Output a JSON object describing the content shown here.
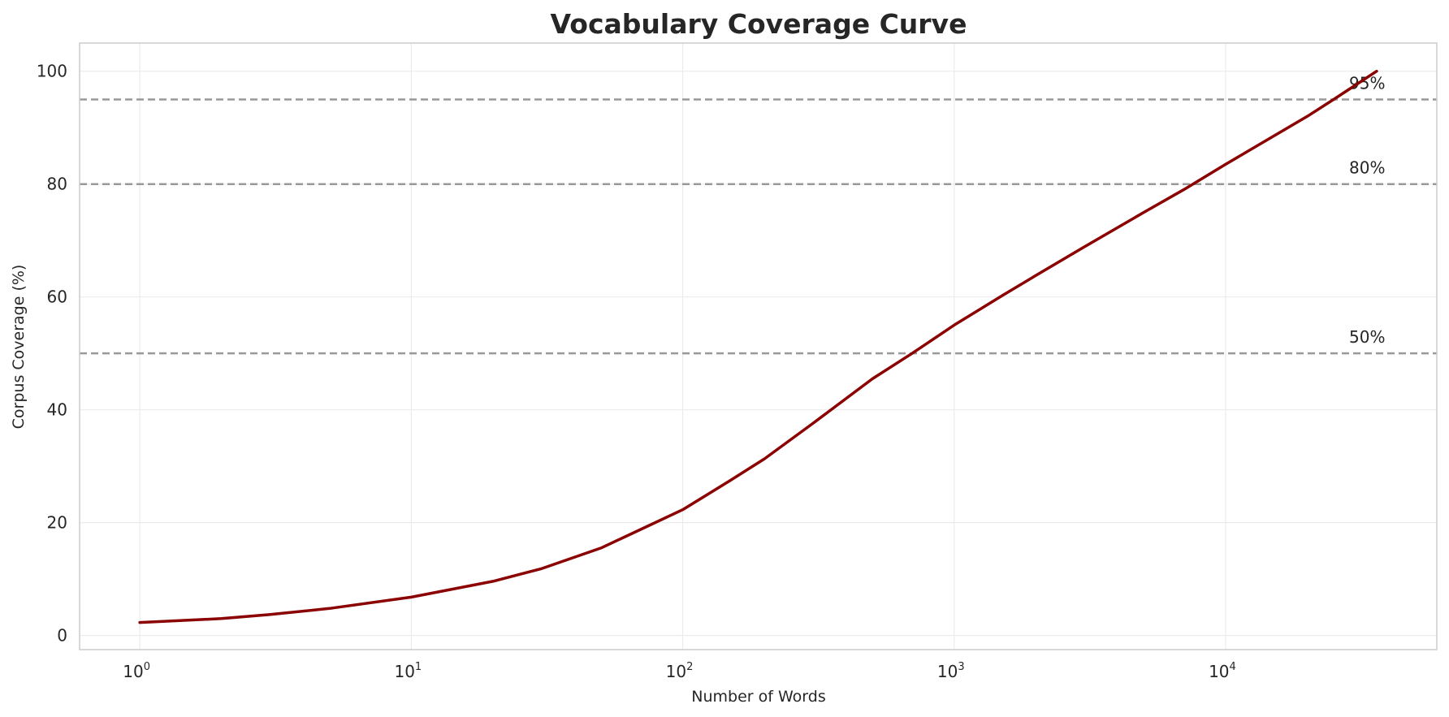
{
  "chart_data": {
    "type": "line",
    "title": "Vocabulary Coverage Curve",
    "xlabel": "Number of Words",
    "ylabel": "Corpus Coverage (%)",
    "xscale": "log",
    "xlim": [
      0.6,
      60000
    ],
    "ylim": [
      -2.5,
      105
    ],
    "xticks": [
      1,
      10,
      100,
      1000,
      10000
    ],
    "xtick_labels": [
      {
        "base": "10",
        "exp": "0"
      },
      {
        "base": "10",
        "exp": "1"
      },
      {
        "base": "10",
        "exp": "2"
      },
      {
        "base": "10",
        "exp": "3"
      },
      {
        "base": "10",
        "exp": "4"
      }
    ],
    "yticks": [
      0,
      20,
      40,
      60,
      80,
      100
    ],
    "grid": true,
    "series": [
      {
        "color": "#8b0000",
        "x": [
          1,
          2,
          3,
          5,
          10,
          20,
          30,
          50,
          70,
          100,
          150,
          200,
          300,
          500,
          700,
          1000,
          1500,
          2000,
          3000,
          5000,
          7000,
          10000,
          15000,
          20000,
          25000,
          30000,
          36000
        ],
        "y": [
          2.3,
          3.0,
          3.7,
          4.8,
          6.8,
          9.6,
          11.8,
          15.5,
          18.8,
          22.3,
          27.5,
          31.3,
          37.5,
          45.5,
          50.0,
          55.0,
          60.2,
          63.8,
          68.8,
          75.0,
          79.0,
          83.5,
          88.5,
          92.0,
          95.0,
          97.5,
          100.0
        ]
      }
    ],
    "reference_lines": [
      {
        "y": 95,
        "label": "95%"
      },
      {
        "y": 80,
        "label": "80%"
      },
      {
        "y": 50,
        "label": "50%"
      }
    ],
    "reference_line_color": "#999999"
  }
}
